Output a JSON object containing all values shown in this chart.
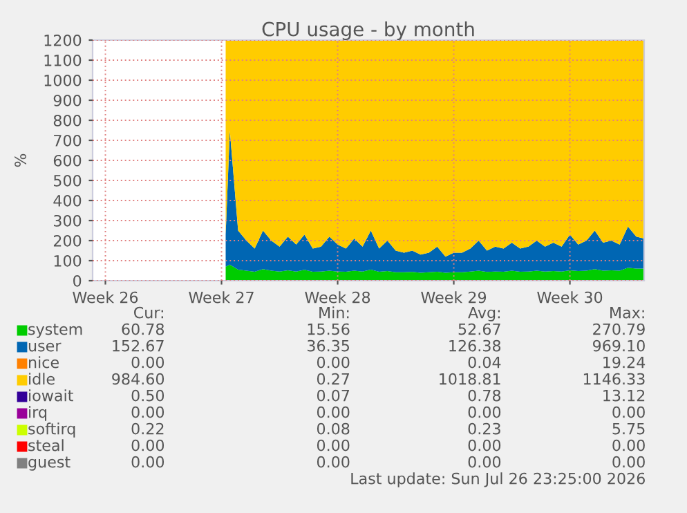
{
  "chart_data": {
    "type": "area",
    "stacked": true,
    "title": "CPU usage - by month",
    "ylabel": "%",
    "x": [
      "2026-07-01T18:00",
      "2026-07-02T00:00",
      "2026-07-02T12:00",
      "2026-07-03T00:00",
      "2026-07-03T12:00",
      "2026-07-04T00:00",
      "2026-07-04T12:00",
      "2026-07-05T00:00",
      "2026-07-05T12:00",
      "2026-07-06T00:00",
      "2026-07-06T12:00",
      "2026-07-07T00:00",
      "2026-07-07T12:00",
      "2026-07-08T00:00",
      "2026-07-08T12:00",
      "2026-07-09T00:00",
      "2026-07-09T12:00",
      "2026-07-10T00:00",
      "2026-07-10T12:00",
      "2026-07-11T00:00",
      "2026-07-11T12:00",
      "2026-07-12T00:00",
      "2026-07-12T12:00",
      "2026-07-13T00:00",
      "2026-07-13T12:00",
      "2026-07-14T00:00",
      "2026-07-14T12:00",
      "2026-07-15T00:00",
      "2026-07-15T12:00",
      "2026-07-16T00:00",
      "2026-07-16T12:00",
      "2026-07-17T00:00",
      "2026-07-17T12:00",
      "2026-07-18T00:00",
      "2026-07-18T12:00",
      "2026-07-19T00:00",
      "2026-07-19T12:00",
      "2026-07-20T00:00",
      "2026-07-20T12:00",
      "2026-07-21T00:00",
      "2026-07-21T12:00",
      "2026-07-22T00:00",
      "2026-07-22T12:00",
      "2026-07-23T00:00",
      "2026-07-23T12:00",
      "2026-07-24T00:00",
      "2026-07-24T12:00",
      "2026-07-25T00:00",
      "2026-07-25T12:00",
      "2026-07-26T00:00",
      "2026-07-26T12:00",
      "2026-07-26T23:25"
    ],
    "series": [
      {
        "name": "system",
        "color": "#00cc00",
        "values": [
          70,
          80,
          55,
          50,
          45,
          58,
          50,
          46,
          52,
          46,
          54,
          45,
          46,
          50,
          46,
          45,
          50,
          46,
          55,
          45,
          48,
          42,
          42,
          44,
          40,
          42,
          45,
          40,
          42,
          42,
          46,
          50,
          44,
          46,
          45,
          50,
          45,
          46,
          50,
          46,
          48,
          46,
          52,
          48,
          50,
          58,
          50,
          52,
          50,
          65,
          60,
          60
        ]
      },
      {
        "name": "user",
        "color": "#0066b3",
        "values": [
          160,
          670,
          195,
          150,
          115,
          192,
          150,
          124,
          168,
          134,
          176,
          115,
          124,
          170,
          134,
          115,
          160,
          124,
          195,
          115,
          152,
          108,
          98,
          106,
          90,
          98,
          125,
          80,
          98,
          98,
          114,
          150,
          106,
          124,
          115,
          140,
          115,
          124,
          150,
          124,
          142,
          124,
          178,
          132,
          150,
          192,
          140,
          148,
          130,
          205,
          160,
          150
        ]
      },
      {
        "name": "nice",
        "color": "#ff8000",
        "values": [
          null,
          null,
          null,
          null,
          null,
          null,
          null,
          null,
          null,
          null,
          null,
          null,
          null,
          null,
          null,
          null,
          null,
          null,
          null,
          null,
          null,
          null,
          null,
          null,
          null,
          null,
          null,
          null,
          null,
          null,
          null,
          null,
          null,
          null,
          null,
          null,
          null,
          null,
          null,
          null,
          null,
          null,
          null,
          null,
          null,
          null,
          null,
          null,
          null,
          null,
          null,
          null
        ]
      },
      {
        "name": "idle",
        "color": "#ffcc00",
        "values": [
          970,
          450,
          950,
          1000,
          1040,
          950,
          1000,
          1030,
          980,
          1020,
          970,
          1040,
          1030,
          980,
          1020,
          1040,
          990,
          1030,
          950,
          1040,
          1000,
          1050,
          1060,
          1050,
          1070,
          1060,
          1030,
          1080,
          1060,
          1060,
          1040,
          1000,
          1050,
          1030,
          1040,
          1010,
          1040,
          1030,
          1000,
          1030,
          1010,
          1030,
          970,
          1020,
          1000,
          950,
          1010,
          1000,
          1020,
          930,
          980,
          990
        ]
      },
      {
        "name": "iowait",
        "color": "#330099",
        "values": [
          null,
          null,
          null,
          null,
          null,
          null,
          null,
          null,
          null,
          null,
          null,
          null,
          null,
          null,
          null,
          null,
          null,
          null,
          null,
          null,
          null,
          null,
          null,
          null,
          null,
          null,
          null,
          null,
          null,
          null,
          null,
          null,
          null,
          null,
          null,
          null,
          null,
          null,
          null,
          null,
          null,
          null,
          null,
          null,
          null,
          null,
          null,
          null,
          null,
          null,
          null,
          null
        ]
      },
      {
        "name": "irq",
        "color": "#990099",
        "values": [
          null,
          null,
          null,
          null,
          null,
          null,
          null,
          null,
          null,
          null,
          null,
          null,
          null,
          null,
          null,
          null,
          null,
          null,
          null,
          null,
          null,
          null,
          null,
          null,
          null,
          null,
          null,
          null,
          null,
          null,
          null,
          null,
          null,
          null,
          null,
          null,
          null,
          null,
          null,
          null,
          null,
          null,
          null,
          null,
          null,
          null,
          null,
          null,
          null,
          null,
          null,
          null
        ]
      },
      {
        "name": "softirq",
        "color": "#ccff00",
        "values": [
          null,
          null,
          null,
          null,
          null,
          null,
          null,
          null,
          null,
          null,
          null,
          null,
          null,
          null,
          null,
          null,
          null,
          null,
          null,
          null,
          null,
          null,
          null,
          null,
          null,
          null,
          null,
          null,
          null,
          null,
          null,
          null,
          null,
          null,
          null,
          null,
          null,
          null,
          null,
          null,
          null,
          null,
          null,
          null,
          null,
          null,
          null,
          null,
          null,
          null,
          null,
          null
        ]
      },
      {
        "name": "steal",
        "color": "#ff0000",
        "values": [
          null,
          null,
          null,
          null,
          null,
          null,
          null,
          null,
          null,
          null,
          null,
          null,
          null,
          null,
          null,
          null,
          null,
          null,
          null,
          null,
          null,
          null,
          null,
          null,
          null,
          null,
          null,
          null,
          null,
          null,
          null,
          null,
          null,
          null,
          null,
          null,
          null,
          null,
          null,
          null,
          null,
          null,
          null,
          null,
          null,
          null,
          null,
          null,
          null,
          null,
          null,
          null
        ]
      },
      {
        "name": "guest",
        "color": "#808080",
        "values": [
          null,
          null,
          null,
          null,
          null,
          null,
          null,
          null,
          null,
          null,
          null,
          null,
          null,
          null,
          null,
          null,
          null,
          null,
          null,
          null,
          null,
          null,
          null,
          null,
          null,
          null,
          null,
          null,
          null,
          null,
          null,
          null,
          null,
          null,
          null,
          null,
          null,
          null,
          null,
          null,
          null,
          null,
          null,
          null,
          null,
          null,
          null,
          null,
          null,
          null,
          null,
          null
        ]
      }
    ],
    "xlim": [
      "2026-06-23T17:30",
      "2026-07-26T23:25"
    ],
    "xticks": [
      {
        "value": "2026-06-24T12:00",
        "label": "Week 26"
      },
      {
        "value": "2026-07-01T12:00",
        "label": "Week 27"
      },
      {
        "value": "2026-07-08T12:00",
        "label": "Week 28"
      },
      {
        "value": "2026-07-15T12:00",
        "label": "Week 29"
      },
      {
        "value": "2026-07-22T12:00",
        "label": "Week 30"
      }
    ],
    "ylim": [
      0,
      1200
    ],
    "yticks": [
      0,
      100,
      200,
      300,
      400,
      500,
      600,
      700,
      800,
      900,
      1000,
      1100,
      1200
    ],
    "grid": true,
    "legend": "bottom",
    "annotations": [
      "Cur:",
      "Min:",
      "Avg:",
      "Max:",
      "60.78",
      "15.56",
      "52.67",
      "270.79",
      "152.67",
      "36.35",
      "126.38",
      "969.10",
      "0.00",
      "0.00",
      "0.04",
      "19.24",
      "984.60",
      "0.27",
      "1018.81",
      "1146.33",
      "0.50",
      "0.07",
      "0.78",
      "13.12",
      "0.00",
      "0.00",
      "0.00",
      "0.00",
      "0.22",
      "0.08",
      "0.23",
      "5.75",
      "0.00",
      "0.00",
      "0.00",
      "0.00",
      "0.00",
      "0.00",
      "0.00",
      "0.00",
      "Last update: Sun Jul 26 23:25:00 2026"
    ]
  }
}
